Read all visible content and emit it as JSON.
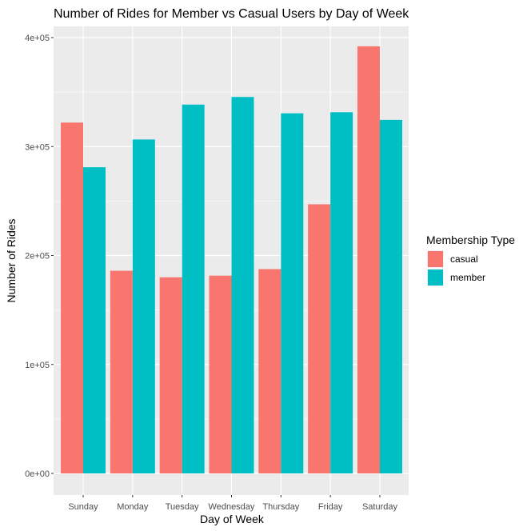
{
  "chart_data": {
    "type": "bar",
    "title": "Number of Rides for Member vs Casual Users by Day of Week",
    "xlabel": "Day of Week",
    "ylabel": "Number of Rides",
    "categories": [
      "Sunday",
      "Monday",
      "Tuesday",
      "Wednesday",
      "Thursday",
      "Friday",
      "Saturday"
    ],
    "series": [
      {
        "name": "casual",
        "color": "#F8766D",
        "values": [
          322000,
          186000,
          180000,
          181500,
          187500,
          247000,
          392000
        ]
      },
      {
        "name": "member",
        "color": "#00BFC4",
        "values": [
          281000,
          306500,
          338500,
          345500,
          330500,
          331500,
          324500
        ]
      }
    ],
    "ylim": [
      0,
      400000
    ],
    "yticks": [
      0,
      100000,
      200000,
      300000,
      400000
    ],
    "ytick_labels": [
      "0e+00",
      "1e+05",
      "2e+05",
      "3e+05",
      "4e+05"
    ],
    "grid": true,
    "legend": {
      "title": "Membership Type",
      "position": "right"
    },
    "panel_background": "#EBEBEB",
    "grid_color": "#FFFFFF"
  }
}
